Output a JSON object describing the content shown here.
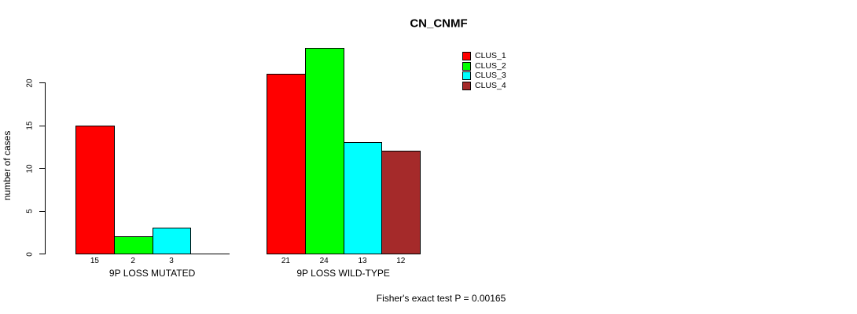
{
  "chart_data": {
    "type": "bar",
    "title": "CN_CNMF",
    "ylabel": "number of cases",
    "xlabel": "",
    "ylim": [
      0,
      20
    ],
    "yticks": [
      0,
      5,
      10,
      15,
      20
    ],
    "grid": false,
    "legend_position": "top-right",
    "categories": [
      "9P LOSS MUTATED",
      "9P LOSS WILD-TYPE"
    ],
    "series": [
      {
        "name": "CLUS_1",
        "color": "#FF0000",
        "values": [
          15,
          21
        ]
      },
      {
        "name": "CLUS_2",
        "color": "#00FF00",
        "values": [
          2,
          24
        ]
      },
      {
        "name": "CLUS_3",
        "color": "#00FFFF",
        "values": [
          3,
          13
        ]
      },
      {
        "name": "CLUS_4",
        "color": "#A52A2A",
        "values": [
          0,
          12
        ]
      }
    ],
    "bar_value_labels": [
      [
        "15",
        "2",
        "3",
        ""
      ],
      [
        "21",
        "24",
        "13",
        "12"
      ]
    ],
    "annotation": "Fisher's exact test P = 0.00165"
  }
}
